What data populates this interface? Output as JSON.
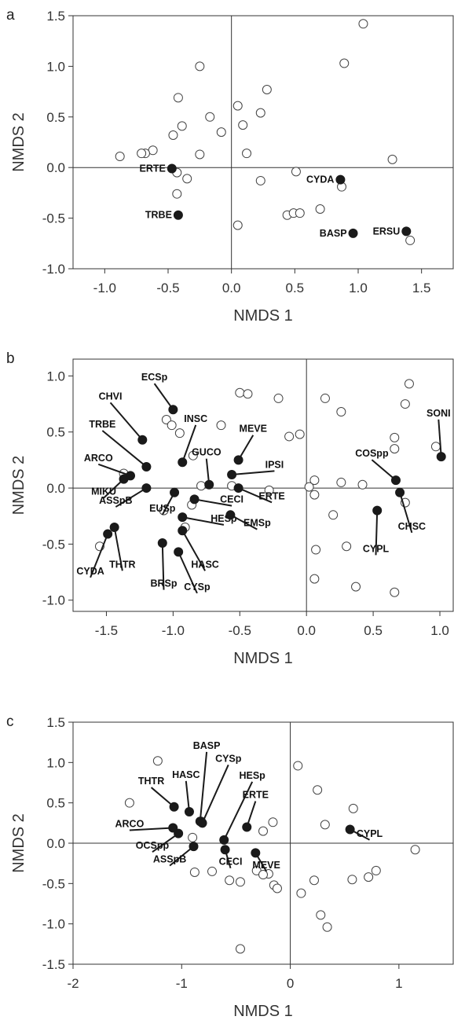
{
  "colors": {
    "filled": "#1a1a1a",
    "open_fill": "#ffffff",
    "stroke": "#444444",
    "axis": "#333333"
  },
  "chart_data": [
    {
      "type": "scatter",
      "panel_label": "a",
      "xlabel": "NMDS 1",
      "ylabel": "NMDS 2",
      "xlim": [
        -1.25,
        1.75
      ],
      "ylim": [
        -1.0,
        1.5
      ],
      "xticks": [
        -1.0,
        -0.5,
        0.0,
        0.5,
        1.0,
        1.5
      ],
      "xtick_labels": [
        "-1.0",
        "-0.5",
        "0.0",
        "0.5",
        "1.0",
        "1.5"
      ],
      "yticks": [
        -1.0,
        -0.5,
        0.0,
        0.5,
        1.0,
        1.5
      ],
      "ytick_labels": [
        "-1.0",
        "-0.5",
        "0.0",
        "0.5",
        "1.0",
        "1.5"
      ],
      "grid": false,
      "reference_lines": {
        "x": 0,
        "y": 0
      },
      "open_points": [
        [
          1.04,
          1.42
        ],
        [
          -0.25,
          1.0
        ],
        [
          0.89,
          1.03
        ],
        [
          0.28,
          0.77
        ],
        [
          -0.42,
          0.69
        ],
        [
          0.05,
          0.61
        ],
        [
          -0.17,
          0.5
        ],
        [
          0.23,
          0.54
        ],
        [
          -0.39,
          0.41
        ],
        [
          0.09,
          0.42
        ],
        [
          -0.46,
          0.32
        ],
        [
          -0.08,
          0.35
        ],
        [
          -0.62,
          0.17
        ],
        [
          -0.68,
          0.14
        ],
        [
          -0.71,
          0.14
        ],
        [
          -0.88,
          0.11
        ],
        [
          -0.25,
          0.13
        ],
        [
          0.12,
          0.14
        ],
        [
          1.27,
          0.08
        ],
        [
          -0.43,
          -0.05
        ],
        [
          0.51,
          -0.04
        ],
        [
          -0.35,
          -0.11
        ],
        [
          0.23,
          -0.13
        ],
        [
          0.87,
          -0.19
        ],
        [
          -0.43,
          -0.26
        ],
        [
          0.7,
          -0.41
        ],
        [
          0.44,
          -0.47
        ],
        [
          0.49,
          -0.45
        ],
        [
          0.54,
          -0.45
        ],
        [
          0.05,
          -0.57
        ],
        [
          1.41,
          -0.72
        ]
      ],
      "filled_points": [
        {
          "label": "ERTE",
          "x": -0.47,
          "y": -0.01
        },
        {
          "label": "CYDA",
          "x": 0.86,
          "y": -0.12
        },
        {
          "label": "TRBE",
          "x": -0.42,
          "y": -0.47
        },
        {
          "label": "BASP",
          "x": 0.96,
          "y": -0.65
        },
        {
          "label": "ERSU",
          "x": 1.38,
          "y": -0.63
        }
      ]
    },
    {
      "type": "scatter",
      "panel_label": "b",
      "xlabel": "NMDS 1",
      "ylabel": "NMDS 2",
      "xlim": [
        -1.75,
        1.1
      ],
      "ylim": [
        -1.1,
        1.15
      ],
      "xticks": [
        -1.5,
        -1.0,
        -0.5,
        0.0,
        0.5,
        1.0
      ],
      "xtick_labels": [
        "-1.5",
        "-1.0",
        "-0.5",
        "0.0",
        "0.5",
        "1.0"
      ],
      "yticks": [
        -1.0,
        -0.5,
        0.0,
        0.5,
        1.0
      ],
      "ytick_labels": [
        "-1.0",
        "-0.5",
        "0.0",
        "0.5",
        "1.0"
      ],
      "grid": false,
      "reference_lines": {
        "x": 0,
        "y": 0
      },
      "open_points": [
        [
          -0.5,
          0.85
        ],
        [
          -0.44,
          0.84
        ],
        [
          -0.21,
          0.8
        ],
        [
          0.77,
          0.93
        ],
        [
          0.14,
          0.8
        ],
        [
          0.74,
          0.75
        ],
        [
          0.26,
          0.68
        ],
        [
          -1.05,
          0.61
        ],
        [
          -1.01,
          0.56
        ],
        [
          -0.95,
          0.49
        ],
        [
          -0.64,
          0.56
        ],
        [
          -0.13,
          0.46
        ],
        [
          -0.05,
          0.48
        ],
        [
          0.66,
          0.45
        ],
        [
          0.66,
          0.35
        ],
        [
          0.97,
          0.37
        ],
        [
          -0.85,
          0.29
        ],
        [
          -1.37,
          0.13
        ],
        [
          -0.79,
          0.02
        ],
        [
          -0.56,
          0.02
        ],
        [
          0.06,
          0.07
        ],
        [
          0.26,
          0.05
        ],
        [
          0.42,
          0.03
        ],
        [
          0.02,
          0.01
        ],
        [
          -0.28,
          -0.02
        ],
        [
          0.06,
          -0.06
        ],
        [
          -1.07,
          -0.2
        ],
        [
          0.74,
          -0.13
        ],
        [
          0.2,
          -0.24
        ],
        [
          -0.86,
          -0.15
        ],
        [
          -0.91,
          -0.35
        ],
        [
          -1.55,
          -0.52
        ],
        [
          0.07,
          -0.55
        ],
        [
          0.3,
          -0.52
        ],
        [
          0.06,
          -0.81
        ],
        [
          0.37,
          -0.88
        ],
        [
          0.66,
          -0.93
        ]
      ],
      "filled_points": [
        {
          "label": "ECSp",
          "x": -1.0,
          "y": 0.7,
          "lx": -1.14,
          "ly": 0.96
        },
        {
          "label": "CHVI",
          "x": -1.23,
          "y": 0.43,
          "lx": -1.47,
          "ly": 0.79
        },
        {
          "label": "INSC",
          "x": -0.93,
          "y": 0.23,
          "lx": -0.83,
          "ly": 0.59
        },
        {
          "label": "TRBE",
          "x": -1.2,
          "y": 0.19,
          "lx": -1.53,
          "ly": 0.54
        },
        {
          "label": "MEVE",
          "x": -0.51,
          "y": 0.25,
          "lx": -0.4,
          "ly": 0.5
        },
        {
          "label": "GUCO",
          "x": -0.73,
          "y": 0.03,
          "lx": -0.75,
          "ly": 0.29
        },
        {
          "label": "IPSI",
          "x": -0.56,
          "y": 0.12,
          "lx": -0.24,
          "ly": 0.18
        },
        {
          "label": "ARCO",
          "x": -1.32,
          "y": 0.11,
          "lx": -1.56,
          "ly": 0.24
        },
        {
          "label": "MIKU",
          "x": -1.37,
          "y": 0.08,
          "lx": -1.52,
          "ly": -0.06
        },
        {
          "label": "ASSpB",
          "x": -1.2,
          "y": 0.0,
          "lx": -1.43,
          "ly": -0.14
        },
        {
          "label": "ERTE",
          "x": -0.51,
          "y": 0.0,
          "lx": -0.26,
          "ly": -0.1
        },
        {
          "label": "CECI",
          "x": -0.84,
          "y": -0.1,
          "lx": -0.56,
          "ly": -0.13
        },
        {
          "label": "EUSp",
          "x": -0.99,
          "y": -0.04,
          "lx": -1.08,
          "ly": -0.21
        },
        {
          "label": "HESp",
          "x": -0.93,
          "y": -0.26,
          "lx": -0.62,
          "ly": -0.3
        },
        {
          "label": "EMSp",
          "x": -0.57,
          "y": -0.24,
          "lx": -0.37,
          "ly": -0.34
        },
        {
          "label": "COSpp",
          "x": 0.67,
          "y": 0.07,
          "lx": 0.49,
          "ly": 0.28
        },
        {
          "label": "SONI",
          "x": 1.01,
          "y": 0.28,
          "lx": 0.99,
          "ly": 0.64
        },
        {
          "label": "CHSC",
          "x": 0.7,
          "y": -0.04,
          "lx": 0.79,
          "ly": -0.37
        },
        {
          "label": "CYPL",
          "x": 0.53,
          "y": -0.2,
          "lx": 0.52,
          "ly": -0.57
        },
        {
          "label": "THTR",
          "x": -1.44,
          "y": -0.35,
          "lx": -1.38,
          "ly": -0.71
        },
        {
          "label": "CYDA",
          "x": -1.49,
          "y": -0.41,
          "lx": -1.62,
          "ly": -0.77
        },
        {
          "label": "BRSp",
          "x": -1.08,
          "y": -0.49,
          "lx": -1.07,
          "ly": -0.88
        },
        {
          "label": "HASC",
          "x": -0.93,
          "y": -0.38,
          "lx": -0.76,
          "ly": -0.71
        },
        {
          "label": "CYSp",
          "x": -0.96,
          "y": -0.57,
          "lx": -0.82,
          "ly": -0.91
        }
      ]
    },
    {
      "type": "scatter",
      "panel_label": "c",
      "xlabel": "NMDS 1",
      "ylabel": "NMDS 2",
      "xlim": [
        -2.0,
        1.5
      ],
      "ylim": [
        -1.5,
        1.5
      ],
      "xticks": [
        -2,
        -1,
        0,
        1
      ],
      "xtick_labels": [
        "-2",
        "-1",
        "0",
        "1"
      ],
      "yticks": [
        -1.5,
        -1.0,
        -0.5,
        0.0,
        0.5,
        1.0,
        1.5
      ],
      "ytick_labels": [
        "-1.5",
        "-1.0",
        "-0.5",
        "0.0",
        "0.5",
        "1.0",
        "1.5"
      ],
      "grid": false,
      "reference_lines": {
        "x": 0,
        "y": 0
      },
      "open_points": [
        [
          -1.22,
          1.02
        ],
        [
          0.07,
          0.96
        ],
        [
          -1.48,
          0.5
        ],
        [
          0.25,
          0.66
        ],
        [
          0.58,
          0.43
        ],
        [
          -0.82,
          0.27
        ],
        [
          -0.16,
          0.26
        ],
        [
          -0.25,
          0.15
        ],
        [
          0.32,
          0.23
        ],
        [
          -0.9,
          0.07
        ],
        [
          1.15,
          -0.08
        ],
        [
          -0.88,
          -0.36
        ],
        [
          -0.72,
          -0.35
        ],
        [
          -0.31,
          -0.34
        ],
        [
          -0.2,
          -0.38
        ],
        [
          -0.25,
          -0.39
        ],
        [
          -0.56,
          -0.46
        ],
        [
          -0.46,
          -0.48
        ],
        [
          -0.15,
          -0.52
        ],
        [
          -0.12,
          -0.56
        ],
        [
          0.79,
          -0.34
        ],
        [
          0.72,
          -0.42
        ],
        [
          0.57,
          -0.45
        ],
        [
          0.22,
          -0.46
        ],
        [
          0.1,
          -0.62
        ],
        [
          0.28,
          -0.89
        ],
        [
          0.34,
          -1.04
        ],
        [
          -0.46,
          -1.31
        ]
      ],
      "filled_points": [
        {
          "label": "BASP",
          "x": -0.83,
          "y": 0.27,
          "lx": -0.77,
          "ly": 1.17
        },
        {
          "label": "CYSp",
          "x": -0.81,
          "y": 0.25,
          "lx": -0.57,
          "ly": 1.01
        },
        {
          "label": "HASC",
          "x": -0.93,
          "y": 0.39,
          "lx": -0.96,
          "ly": 0.81
        },
        {
          "label": "HESp",
          "x": -0.61,
          "y": 0.04,
          "lx": -0.35,
          "ly": 0.8
        },
        {
          "label": "THTR",
          "x": -1.07,
          "y": 0.45,
          "lx": -1.28,
          "ly": 0.73
        },
        {
          "label": "ERTE",
          "x": -0.4,
          "y": 0.2,
          "lx": -0.32,
          "ly": 0.56
        },
        {
          "label": "ARCO",
          "x": -1.08,
          "y": 0.19,
          "lx": -1.48,
          "ly": 0.2
        },
        {
          "label": "OCSpp",
          "x": -1.03,
          "y": 0.12,
          "lx": -1.27,
          "ly": -0.07
        },
        {
          "label": "ASSpB",
          "x": -0.89,
          "y": -0.04,
          "lx": -1.11,
          "ly": -0.24
        },
        {
          "label": "CECI",
          "x": -0.6,
          "y": -0.08,
          "lx": -0.55,
          "ly": -0.27
        },
        {
          "label": "MEVE",
          "x": -0.32,
          "y": -0.12,
          "lx": -0.22,
          "ly": -0.31
        },
        {
          "label": "CYPL",
          "x": 0.55,
          "y": 0.17,
          "lx": 0.73,
          "ly": 0.08
        }
      ]
    }
  ]
}
